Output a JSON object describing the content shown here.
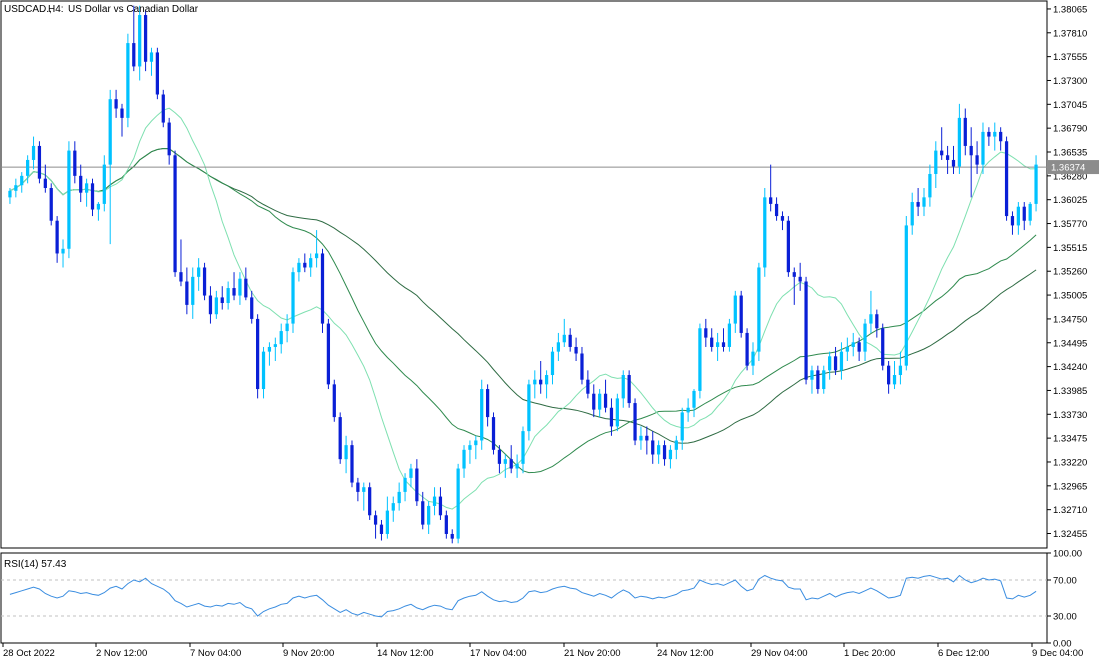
{
  "header": {
    "symbol": "USDCAD.,",
    "timeframe": "H4:",
    "description": "US Dollar vs Canadian Dollar"
  },
  "current_price_label": "1.36374",
  "rsi_label": "RSI(14) 57.43",
  "colors": {
    "bull": "#00c2ff",
    "bear": "#0a1fd6",
    "ma_fast": "#7ee0b0",
    "ma_slow": "#2f8a4e",
    "ma_long": "#2e6b43",
    "rsi": "#3a8de0",
    "grid": "#c0c0c0",
    "current_line": "#8c8c8c",
    "price_tag_bg": "#8c8c8c"
  },
  "chart_data": [
    {
      "type": "candlestick",
      "title": "USDCAD., H4: US Dollar vs Canadian Dollar",
      "ylim": [
        1.323,
        1.3815
      ],
      "y_ticks": [
        "1.38065",
        "1.37810",
        "1.37555",
        "1.37300",
        "1.37045",
        "1.36790",
        "1.36535",
        "1.36280",
        "1.36025",
        "1.35770",
        "1.35515",
        "1.35260",
        "1.35005",
        "1.34750",
        "1.34495",
        "1.34240",
        "1.33985",
        "1.33730",
        "1.33475",
        "1.33220",
        "1.32965",
        "1.32710",
        "1.32455"
      ],
      "x_ticks": [
        "28 Oct 2022",
        "2 Nov 12:00",
        "7 Nov 04:00",
        "9 Nov 20:00",
        "14 Nov 12:00",
        "17 Nov 04:00",
        "21 Nov 20:00",
        "24 Nov 12:00",
        "29 Nov 04:00",
        "1 Dec 20:00",
        "6 Dec 12:00",
        "9 Dec 04:00"
      ],
      "current_price": 1.36374,
      "candles": [
        [
          1.3605,
          1.3615,
          1.3598,
          1.3612
        ],
        [
          1.3612,
          1.3625,
          1.3605,
          1.3618
        ],
        [
          1.3618,
          1.3632,
          1.361,
          1.3628
        ],
        [
          1.3628,
          1.365,
          1.362,
          1.3645
        ],
        [
          1.3645,
          1.367,
          1.3635,
          1.366
        ],
        [
          1.366,
          1.3665,
          1.362,
          1.3625
        ],
        [
          1.3625,
          1.364,
          1.361,
          1.3615
        ],
        [
          1.3615,
          1.362,
          1.3575,
          1.358
        ],
        [
          1.358,
          1.3585,
          1.3535,
          1.3545
        ],
        [
          1.3545,
          1.356,
          1.353,
          1.355
        ],
        [
          1.355,
          1.3665,
          1.354,
          1.3655
        ],
        [
          1.3655,
          1.3665,
          1.362,
          1.3628
        ],
        [
          1.3628,
          1.364,
          1.36,
          1.361
        ],
        [
          1.361,
          1.3625,
          1.3595,
          1.362
        ],
        [
          1.362,
          1.3625,
          1.3585,
          1.3592
        ],
        [
          1.3592,
          1.36,
          1.358,
          1.3598
        ],
        [
          1.3598,
          1.365,
          1.359,
          1.364
        ],
        [
          1.364,
          1.372,
          1.3555,
          1.371
        ],
        [
          1.371,
          1.372,
          1.369,
          1.37
        ],
        [
          1.37,
          1.3705,
          1.367,
          1.369
        ],
        [
          1.369,
          1.378,
          1.368,
          1.377
        ],
        [
          1.377,
          1.381,
          1.374,
          1.3745
        ],
        [
          1.3745,
          1.381,
          1.373,
          1.38
        ],
        [
          1.38,
          1.3805,
          1.374,
          1.375
        ],
        [
          1.375,
          1.3765,
          1.3735,
          1.376
        ],
        [
          1.376,
          1.3765,
          1.371,
          1.3715
        ],
        [
          1.3715,
          1.372,
          1.368,
          1.3685
        ],
        [
          1.3685,
          1.369,
          1.364,
          1.365
        ],
        [
          1.365,
          1.3655,
          1.352,
          1.3525
        ],
        [
          1.3525,
          1.356,
          1.351,
          1.3515
        ],
        [
          1.3515,
          1.353,
          1.348,
          1.349
        ],
        [
          1.349,
          1.353,
          1.3475,
          1.352
        ],
        [
          1.352,
          1.354,
          1.3505,
          1.353
        ],
        [
          1.353,
          1.3535,
          1.3495,
          1.35
        ],
        [
          1.35,
          1.351,
          1.347,
          1.348
        ],
        [
          1.348,
          1.3505,
          1.3475,
          1.3498
        ],
        [
          1.3498,
          1.351,
          1.3485,
          1.3492
        ],
        [
          1.3492,
          1.3515,
          1.3485,
          1.3508
        ],
        [
          1.3508,
          1.3525,
          1.3495,
          1.35
        ],
        [
          1.35,
          1.3525,
          1.349,
          1.3518
        ],
        [
          1.3518,
          1.353,
          1.3495,
          1.3498
        ],
        [
          1.3498,
          1.3505,
          1.347,
          1.3475
        ],
        [
          1.3475,
          1.348,
          1.339,
          1.34
        ],
        [
          1.34,
          1.3445,
          1.339,
          1.344
        ],
        [
          1.344,
          1.345,
          1.3425,
          1.3445
        ],
        [
          1.3445,
          1.3455,
          1.343,
          1.3448
        ],
        [
          1.3448,
          1.347,
          1.3438,
          1.3462
        ],
        [
          1.3462,
          1.348,
          1.345,
          1.347
        ],
        [
          1.347,
          1.353,
          1.346,
          1.3525
        ],
        [
          1.3525,
          1.354,
          1.3515,
          1.3535
        ],
        [
          1.3535,
          1.3545,
          1.3525,
          1.353
        ],
        [
          1.353,
          1.3545,
          1.352,
          1.354
        ],
        [
          1.354,
          1.357,
          1.353,
          1.3545
        ],
        [
          1.3545,
          1.355,
          1.346,
          1.347
        ],
        [
          1.347,
          1.3475,
          1.34,
          1.3405
        ],
        [
          1.3405,
          1.341,
          1.3365,
          1.337
        ],
        [
          1.337,
          1.3375,
          1.332,
          1.3325
        ],
        [
          1.3325,
          1.335,
          1.331,
          1.334
        ],
        [
          1.334,
          1.3345,
          1.3295,
          1.33
        ],
        [
          1.33,
          1.3305,
          1.328,
          1.329
        ],
        [
          1.329,
          1.33,
          1.327,
          1.3295
        ],
        [
          1.3295,
          1.33,
          1.326,
          1.3265
        ],
        [
          1.3265,
          1.327,
          1.324,
          1.3255
        ],
        [
          1.3255,
          1.326,
          1.3238,
          1.3245
        ],
        [
          1.3245,
          1.3285,
          1.324,
          1.327
        ],
        [
          1.327,
          1.3285,
          1.3258,
          1.3278
        ],
        [
          1.3278,
          1.33,
          1.327,
          1.329
        ],
        [
          1.329,
          1.331,
          1.328,
          1.3305
        ],
        [
          1.3305,
          1.332,
          1.3295,
          1.3315
        ],
        [
          1.3315,
          1.3325,
          1.3275,
          1.328
        ],
        [
          1.328,
          1.329,
          1.325,
          1.3255
        ],
        [
          1.3255,
          1.328,
          1.3245,
          1.3275
        ],
        [
          1.3275,
          1.3295,
          1.3265,
          1.3285
        ],
        [
          1.3285,
          1.3295,
          1.326,
          1.3265
        ],
        [
          1.3265,
          1.327,
          1.324,
          1.3245
        ],
        [
          1.3245,
          1.325,
          1.3235,
          1.324
        ],
        [
          1.324,
          1.332,
          1.3235,
          1.3315
        ],
        [
          1.3315,
          1.334,
          1.3305,
          1.3335
        ],
        [
          1.3335,
          1.3345,
          1.332,
          1.334
        ],
        [
          1.334,
          1.335,
          1.3325,
          1.3345
        ],
        [
          1.3345,
          1.341,
          1.3335,
          1.34
        ],
        [
          1.34,
          1.3405,
          1.336,
          1.337
        ],
        [
          1.337,
          1.3375,
          1.333,
          1.3335
        ],
        [
          1.3335,
          1.334,
          1.331,
          1.332
        ],
        [
          1.332,
          1.333,
          1.3305,
          1.3325
        ],
        [
          1.3325,
          1.334,
          1.331,
          1.3315
        ],
        [
          1.3315,
          1.333,
          1.3305,
          1.332
        ],
        [
          1.332,
          1.336,
          1.331,
          1.3355
        ],
        [
          1.3355,
          1.341,
          1.3345,
          1.3405
        ],
        [
          1.3405,
          1.342,
          1.339,
          1.341
        ],
        [
          1.341,
          1.343,
          1.3395,
          1.3405
        ],
        [
          1.3405,
          1.342,
          1.339,
          1.3415
        ],
        [
          1.3415,
          1.3445,
          1.3405,
          1.344
        ],
        [
          1.344,
          1.346,
          1.343,
          1.345
        ],
        [
          1.345,
          1.3475,
          1.3445,
          1.3458
        ],
        [
          1.3458,
          1.3465,
          1.344,
          1.3445
        ],
        [
          1.3445,
          1.3455,
          1.343,
          1.3438
        ],
        [
          1.3438,
          1.3445,
          1.3405,
          1.341
        ],
        [
          1.341,
          1.342,
          1.339,
          1.3395
        ],
        [
          1.3395,
          1.3405,
          1.337,
          1.3378
        ],
        [
          1.3378,
          1.34,
          1.337,
          1.3395
        ],
        [
          1.3395,
          1.341,
          1.3375,
          1.338
        ],
        [
          1.338,
          1.339,
          1.335,
          1.336
        ],
        [
          1.336,
          1.3395,
          1.3355,
          1.339
        ],
        [
          1.339,
          1.342,
          1.338,
          1.3415
        ],
        [
          1.3415,
          1.342,
          1.338,
          1.3385
        ],
        [
          1.3385,
          1.339,
          1.334,
          1.3345
        ],
        [
          1.3345,
          1.336,
          1.3335,
          1.335
        ],
        [
          1.335,
          1.336,
          1.333,
          1.3345
        ],
        [
          1.3345,
          1.3355,
          1.332,
          1.333
        ],
        [
          1.333,
          1.3345,
          1.332,
          1.334
        ],
        [
          1.334,
          1.3345,
          1.3318,
          1.3325
        ],
        [
          1.3325,
          1.334,
          1.3315,
          1.3335
        ],
        [
          1.3335,
          1.335,
          1.3325,
          1.3345
        ],
        [
          1.3345,
          1.338,
          1.3335,
          1.3375
        ],
        [
          1.3375,
          1.339,
          1.3365,
          1.338
        ],
        [
          1.338,
          1.34,
          1.337,
          1.3398
        ],
        [
          1.3398,
          1.347,
          1.339,
          1.3465
        ],
        [
          1.3465,
          1.3475,
          1.3445,
          1.3455
        ],
        [
          1.3455,
          1.3465,
          1.344,
          1.3445
        ],
        [
          1.3445,
          1.346,
          1.343,
          1.345
        ],
        [
          1.345,
          1.3465,
          1.344,
          1.3445
        ],
        [
          1.3445,
          1.3475,
          1.344,
          1.347
        ],
        [
          1.347,
          1.3505,
          1.346,
          1.35
        ],
        [
          1.35,
          1.3505,
          1.3455,
          1.346
        ],
        [
          1.346,
          1.3465,
          1.342,
          1.3425
        ],
        [
          1.3425,
          1.345,
          1.3415,
          1.344
        ],
        [
          1.344,
          1.3535,
          1.343,
          1.353
        ],
        [
          1.353,
          1.3615,
          1.352,
          1.3605
        ],
        [
          1.3605,
          1.364,
          1.359,
          1.3598
        ],
        [
          1.3598,
          1.3605,
          1.358,
          1.3585
        ],
        [
          1.3585,
          1.359,
          1.357,
          1.358
        ],
        [
          1.358,
          1.3585,
          1.352,
          1.3525
        ],
        [
          1.3525,
          1.353,
          1.349,
          1.352
        ],
        [
          1.352,
          1.3535,
          1.3505,
          1.3515
        ],
        [
          1.3515,
          1.352,
          1.3405,
          1.341
        ],
        [
          1.341,
          1.3425,
          1.3395,
          1.342
        ],
        [
          1.342,
          1.3425,
          1.3395,
          1.34
        ],
        [
          1.34,
          1.3425,
          1.3395,
          1.342
        ],
        [
          1.342,
          1.344,
          1.341,
          1.3435
        ],
        [
          1.3435,
          1.3445,
          1.3415,
          1.342
        ],
        [
          1.342,
          1.345,
          1.341,
          1.344
        ],
        [
          1.344,
          1.3455,
          1.343,
          1.3445
        ],
        [
          1.3445,
          1.346,
          1.3435,
          1.345
        ],
        [
          1.345,
          1.3455,
          1.343,
          1.344
        ],
        [
          1.344,
          1.3475,
          1.343,
          1.347
        ],
        [
          1.347,
          1.3505,
          1.346,
          1.348
        ],
        [
          1.348,
          1.3485,
          1.3455,
          1.3465
        ],
        [
          1.3465,
          1.347,
          1.342,
          1.3425
        ],
        [
          1.3425,
          1.343,
          1.3395,
          1.3405
        ],
        [
          1.3405,
          1.343,
          1.34,
          1.3415
        ],
        [
          1.3415,
          1.344,
          1.3405,
          1.3425
        ],
        [
          1.3425,
          1.3585,
          1.342,
          1.3575
        ],
        [
          1.3575,
          1.361,
          1.3565,
          1.36
        ],
        [
          1.36,
          1.3615,
          1.3585,
          1.3595
        ],
        [
          1.3595,
          1.3615,
          1.3585,
          1.3605
        ],
        [
          1.3605,
          1.364,
          1.3595,
          1.363
        ],
        [
          1.363,
          1.3665,
          1.3615,
          1.3655
        ],
        [
          1.3655,
          1.368,
          1.3645,
          1.365
        ],
        [
          1.365,
          1.366,
          1.363,
          1.3645
        ],
        [
          1.3645,
          1.366,
          1.363,
          1.3638
        ],
        [
          1.3638,
          1.3705,
          1.363,
          1.369
        ],
        [
          1.369,
          1.37,
          1.365,
          1.366
        ],
        [
          1.366,
          1.368,
          1.3605,
          1.365
        ],
        [
          1.365,
          1.3665,
          1.363,
          1.364
        ],
        [
          1.364,
          1.3685,
          1.363,
          1.3675
        ],
        [
          1.3675,
          1.368,
          1.366,
          1.367
        ],
        [
          1.367,
          1.3685,
          1.3655,
          1.3675
        ],
        [
          1.3675,
          1.368,
          1.3655,
          1.3665
        ],
        [
          1.3665,
          1.367,
          1.358,
          1.3585
        ],
        [
          1.3585,
          1.359,
          1.3565,
          1.3575
        ],
        [
          1.3575,
          1.36,
          1.3565,
          1.3595
        ],
        [
          1.3595,
          1.36,
          1.357,
          1.358
        ],
        [
          1.358,
          1.36,
          1.3575,
          1.3598
        ],
        [
          1.3598,
          1.365,
          1.359,
          1.364
        ]
      ]
    },
    {
      "type": "line",
      "title": "RSI(14) 57.43",
      "ylim": [
        0,
        100
      ],
      "y_ticks": [
        "100.00",
        "70.00",
        "30.00",
        "0.00"
      ],
      "levels": [
        70,
        30
      ],
      "current_value": 57.43,
      "values": [
        54,
        56,
        58,
        60,
        62,
        60,
        55,
        52,
        50,
        52,
        58,
        57,
        55,
        56,
        54,
        53,
        56,
        61,
        63,
        60,
        66,
        70,
        68,
        72,
        66,
        63,
        60,
        55,
        47,
        44,
        40,
        42,
        44,
        41,
        40,
        42,
        41,
        44,
        43,
        45,
        40,
        38,
        30,
        35,
        38,
        40,
        43,
        44,
        50,
        52,
        50,
        52,
        53,
        48,
        42,
        38,
        34,
        37,
        33,
        31,
        34,
        32,
        30,
        29,
        35,
        36,
        38,
        41,
        43,
        39,
        37,
        40,
        42,
        41,
        38,
        37,
        47,
        50,
        52,
        53,
        57,
        52,
        48,
        46,
        47,
        45,
        46,
        50,
        57,
        58,
        56,
        57,
        60,
        62,
        63,
        61,
        60,
        56,
        54,
        52,
        55,
        53,
        50,
        55,
        59,
        56,
        50,
        52,
        51,
        49,
        51,
        50,
        52,
        54,
        58,
        59,
        61,
        70,
        67,
        65,
        66,
        64,
        67,
        70,
        63,
        58,
        60,
        71,
        75,
        72,
        70,
        69,
        62,
        60,
        60,
        48,
        50,
        49,
        52,
        55,
        51,
        54,
        56,
        57,
        55,
        58,
        61,
        58,
        54,
        50,
        51,
        53,
        72,
        73,
        72,
        74,
        75,
        73,
        71,
        72,
        68,
        75,
        70,
        67,
        69,
        72,
        70,
        71,
        69,
        50,
        49,
        53,
        51,
        53,
        57.43
      ]
    }
  ]
}
